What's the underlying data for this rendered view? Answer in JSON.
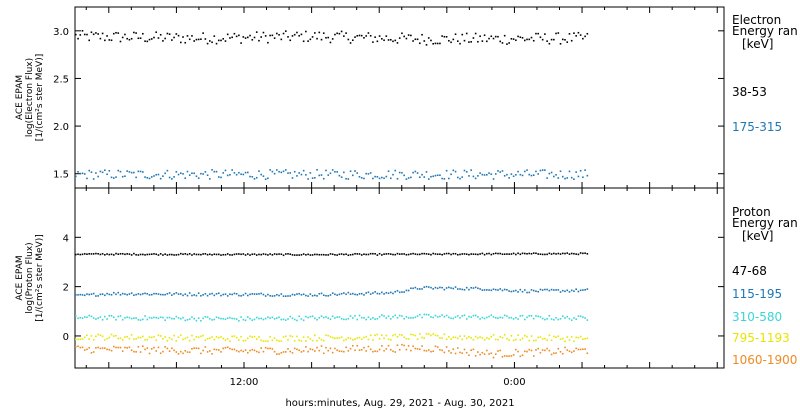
{
  "xlabel": "hours:minutes, Aug. 29, 2021 - Aug. 30, 2021",
  "x_ticks": [
    {
      "hour": 12,
      "label": "12:00"
    },
    {
      "hour": 24,
      "label": "0:00"
    }
  ],
  "chart_data": [
    {
      "type": "scatter",
      "ylabel_lines": [
        "ACE EPAM",
        "log(Electron Flux)",
        "[1/(cm²s ster MeV)]"
      ],
      "legend_title": [
        "Electron",
        "Energy ran"
      ],
      "legend_unit": "[keV]",
      "xlim": [
        4.5,
        33.3
      ],
      "ylim": [
        1.35,
        3.25
      ],
      "y_ticks": [
        1.5,
        2.0,
        2.5,
        3.0
      ],
      "y_tick_labels": [
        "1.5",
        "2.0",
        "2.5",
        "3.0"
      ],
      "series": [
        {
          "name": "38-53",
          "color": "#000000",
          "x_start": 4.5,
          "x_end": 27.2,
          "level": 2.93,
          "spread": 0.06,
          "profile": [
            [
              4.5,
              2.95
            ],
            [
              10,
              2.93
            ],
            [
              15,
              2.95
            ],
            [
              20,
              2.92
            ],
            [
              27.2,
              2.93
            ]
          ]
        },
        {
          "name": "175-315",
          "color": "#1f77b4",
          "x_start": 4.5,
          "x_end": 27.2,
          "level": 1.5,
          "spread": 0.05,
          "profile": [
            [
              4.5,
              1.5
            ],
            [
              15,
              1.5
            ],
            [
              27.2,
              1.5
            ]
          ]
        }
      ]
    },
    {
      "type": "scatter",
      "ylabel_lines": [
        "ACE EPAM",
        "log(Proton Flux)",
        "[1/(cm²s ster MeV)]"
      ],
      "legend_title": [
        "Proton",
        "Energy ran"
      ],
      "legend_unit": "[keV]",
      "xlim": [
        4.5,
        33.3
      ],
      "ylim": [
        -1.3,
        6.0
      ],
      "y_ticks": [
        0,
        2,
        4
      ],
      "y_tick_labels": [
        "0",
        "2",
        "4"
      ],
      "series": [
        {
          "name": "47-68",
          "color": "#000000",
          "x_start": 4.5,
          "x_end": 27.2,
          "level": 3.35,
          "spread": 0.03,
          "profile": [
            [
              4.5,
              3.35
            ],
            [
              15,
              3.33
            ],
            [
              27.2,
              3.37
            ]
          ]
        },
        {
          "name": "115-195",
          "color": "#1f77b4",
          "x_start": 4.5,
          "x_end": 27.2,
          "level": 1.8,
          "spread": 0.06,
          "profile": [
            [
              4.5,
              1.65
            ],
            [
              6,
              1.75
            ],
            [
              10,
              1.72
            ],
            [
              15,
              1.7
            ],
            [
              18.5,
              1.78
            ],
            [
              19.8,
              1.98
            ],
            [
              22.5,
              1.95
            ],
            [
              24.5,
              1.85
            ],
            [
              27.2,
              1.88
            ]
          ]
        },
        {
          "name": "310-580",
          "color": "#3ad6d6",
          "x_start": 4.5,
          "x_end": 27.2,
          "level": 0.75,
          "spread": 0.09,
          "profile": [
            [
              4.5,
              0.78
            ],
            [
              12,
              0.72
            ],
            [
              20,
              0.82
            ],
            [
              27.2,
              0.75
            ]
          ]
        },
        {
          "name": "795-1193",
          "color": "#e6e600",
          "x_start": 4.5,
          "x_end": 27.2,
          "level": -0.05,
          "spread": 0.12,
          "profile": [
            [
              4.5,
              0.0
            ],
            [
              12,
              -0.08
            ],
            [
              20,
              0.0
            ],
            [
              27.2,
              -0.08
            ]
          ]
        },
        {
          "name": "1060-1900",
          "color": "#f08a24",
          "x_start": 4.5,
          "x_end": 27.2,
          "level": -0.55,
          "spread": 0.15,
          "profile": [
            [
              4.5,
              -0.5
            ],
            [
              12,
              -0.58
            ],
            [
              20,
              -0.45
            ],
            [
              23,
              -0.7
            ],
            [
              27.2,
              -0.55
            ]
          ]
        }
      ]
    }
  ]
}
